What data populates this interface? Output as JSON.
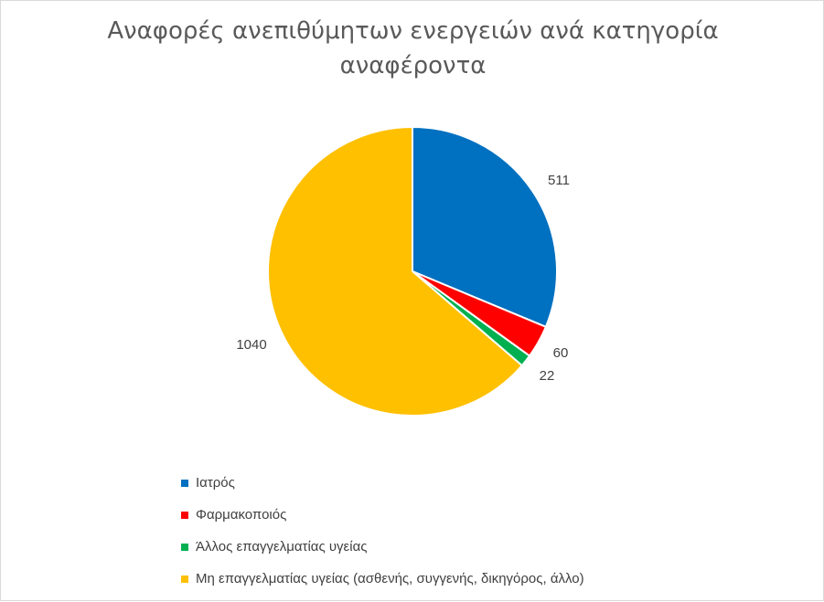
{
  "chart_data": {
    "type": "pie",
    "title": "Αναφορές ανεπιθύμητων ενεργειών ανά κατηγορία αναφέροντα",
    "title_lines": [
      "Αναφορές ανεπιθύμητων ενεργειών ανά κατηγορία",
      "αναφέροντα"
    ],
    "categories": [
      "Ιατρός",
      "Φαρμακοποιός",
      "Άλλος επαγγελματίας υγείας",
      "Μη επαγγελματίας υγείας (ασθενής, συγγενής, δικηγόρος, άλλο)"
    ],
    "values": [
      511,
      60,
      22,
      1040
    ],
    "colors": [
      "#0070c0",
      "#ff0000",
      "#00b050",
      "#ffc000"
    ],
    "data_labels": [
      "511",
      "60",
      "22",
      "1040"
    ],
    "legend_position": "bottom"
  }
}
